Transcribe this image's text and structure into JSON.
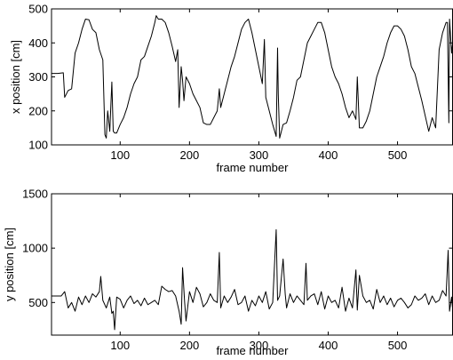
{
  "chart_data": [
    {
      "type": "line",
      "xlabel": "frame number",
      "ylabel": "x position [cm]",
      "xlim": [
        1,
        580
      ],
      "ylim": [
        100,
        500
      ],
      "xticks": [
        100,
        200,
        300,
        400,
        500
      ],
      "yticks": [
        100,
        200,
        300,
        400,
        500
      ],
      "grid": false,
      "legend": "none",
      "series": [
        {
          "x": [
            1,
            10,
            18,
            20,
            25,
            30,
            35,
            40,
            45,
            50,
            55,
            60,
            65,
            70,
            75,
            78,
            80,
            82,
            85,
            88,
            90,
            92,
            95,
            100,
            105,
            110,
            115,
            120,
            125,
            130,
            135,
            140,
            145,
            150,
            152,
            155,
            160,
            165,
            170,
            175,
            180,
            183,
            185,
            188,
            190,
            192,
            195,
            200,
            205,
            210,
            215,
            220,
            225,
            230,
            235,
            240,
            243,
            245,
            250,
            255,
            260,
            265,
            270,
            275,
            280,
            285,
            290,
            295,
            300,
            305,
            308,
            310,
            315,
            320,
            325,
            327,
            328,
            330,
            335,
            340,
            345,
            350,
            355,
            360,
            365,
            370,
            375,
            380,
            385,
            390,
            395,
            400,
            405,
            410,
            415,
            420,
            425,
            430,
            435,
            440,
            442,
            445,
            450,
            455,
            460,
            465,
            470,
            475,
            480,
            485,
            490,
            495,
            500,
            505,
            510,
            515,
            520,
            525,
            530,
            535,
            540,
            545,
            550,
            555,
            560,
            565,
            570,
            572,
            574,
            575,
            578,
            580
          ],
          "y": [
            310,
            310,
            312,
            240,
            260,
            265,
            370,
            400,
            440,
            470,
            468,
            440,
            430,
            380,
            350,
            130,
            120,
            200,
            140,
            285,
            140,
            135,
            135,
            160,
            180,
            210,
            250,
            280,
            300,
            350,
            360,
            390,
            420,
            460,
            480,
            470,
            470,
            460,
            430,
            390,
            345,
            380,
            210,
            330,
            290,
            230,
            300,
            280,
            250,
            230,
            210,
            165,
            160,
            160,
            180,
            200,
            265,
            210,
            250,
            290,
            330,
            360,
            400,
            440,
            460,
            470,
            430,
            380,
            330,
            280,
            410,
            240,
            200,
            160,
            125,
            385,
            250,
            120,
            160,
            165,
            200,
            240,
            290,
            300,
            350,
            400,
            420,
            440,
            460,
            460,
            430,
            380,
            330,
            300,
            280,
            250,
            210,
            180,
            200,
            175,
            300,
            150,
            150,
            170,
            200,
            250,
            300,
            330,
            360,
            400,
            430,
            450,
            450,
            440,
            420,
            380,
            330,
            310,
            270,
            230,
            185,
            140,
            180,
            150,
            380,
            430,
            460,
            460,
            165,
            470,
            370,
            410
          ]
        }
      ]
    },
    {
      "type": "line",
      "xlabel": "frame number",
      "ylabel": "y position [cm]",
      "xlim": [
        1,
        580
      ],
      "ylim": [
        200,
        1500
      ],
      "xticks": [
        100,
        200,
        300,
        400,
        500
      ],
      "yticks": [
        500,
        1000,
        1500
      ],
      "grid": false,
      "legend": "none",
      "series": [
        {
          "x": [
            1,
            10,
            15,
            20,
            25,
            30,
            35,
            40,
            45,
            50,
            55,
            60,
            65,
            70,
            72,
            75,
            80,
            85,
            88,
            90,
            92,
            95,
            100,
            105,
            110,
            115,
            120,
            125,
            130,
            135,
            140,
            145,
            150,
            155,
            160,
            165,
            170,
            175,
            180,
            185,
            188,
            190,
            193,
            195,
            200,
            205,
            210,
            215,
            220,
            225,
            230,
            235,
            240,
            243,
            245,
            250,
            255,
            260,
            265,
            270,
            275,
            280,
            285,
            290,
            295,
            300,
            305,
            310,
            315,
            320,
            325,
            327,
            330,
            335,
            338,
            340,
            345,
            350,
            355,
            360,
            365,
            368,
            370,
            375,
            380,
            385,
            390,
            395,
            400,
            405,
            410,
            415,
            420,
            425,
            430,
            435,
            440,
            442,
            445,
            450,
            455,
            460,
            465,
            470,
            475,
            480,
            485,
            490,
            495,
            500,
            505,
            510,
            515,
            520,
            525,
            530,
            535,
            540,
            545,
            550,
            555,
            560,
            565,
            570,
            573,
            575,
            578,
            580
          ],
          "y": [
            560,
            560,
            560,
            600,
            450,
            500,
            420,
            550,
            480,
            560,
            500,
            580,
            550,
            600,
            740,
            520,
            450,
            550,
            400,
            420,
            250,
            550,
            530,
            450,
            520,
            560,
            490,
            520,
            470,
            540,
            480,
            500,
            520,
            480,
            650,
            620,
            600,
            610,
            560,
            420,
            300,
            820,
            500,
            330,
            600,
            500,
            640,
            580,
            460,
            500,
            580,
            520,
            500,
            960,
            450,
            560,
            500,
            550,
            620,
            480,
            500,
            560,
            420,
            520,
            470,
            560,
            500,
            600,
            440,
            500,
            1170,
            520,
            560,
            900,
            580,
            450,
            580,
            500,
            560,
            520,
            480,
            860,
            520,
            560,
            580,
            480,
            600,
            440,
            560,
            500,
            520,
            450,
            640,
            420,
            540,
            450,
            800,
            430,
            750,
            560,
            500,
            520,
            440,
            620,
            500,
            560,
            480,
            540,
            460,
            520,
            540,
            500,
            450,
            480,
            560,
            520,
            540,
            580,
            480,
            560,
            500,
            520,
            610,
            560,
            980,
            420,
            550,
            400
          ]
        }
      ]
    }
  ]
}
